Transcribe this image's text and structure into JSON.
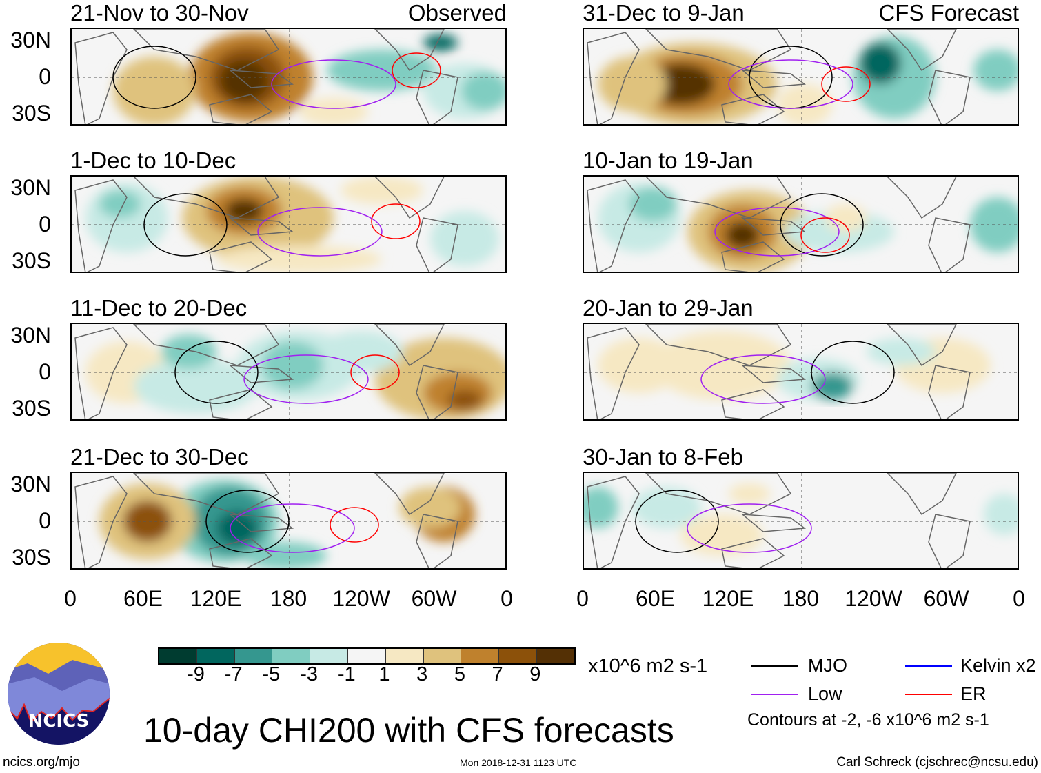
{
  "panels": [
    {
      "title": "21-Nov to 30-Nov",
      "label": "Observed",
      "side": "left",
      "row": 0
    },
    {
      "title": "1-Dec to 10-Dec",
      "label": "",
      "side": "left",
      "row": 1
    },
    {
      "title": "11-Dec to 20-Dec",
      "label": "",
      "side": "left",
      "row": 2
    },
    {
      "title": "21-Dec to 30-Dec",
      "label": "",
      "side": "left",
      "row": 3
    },
    {
      "title": "31-Dec to 9-Jan",
      "label": "CFS Forecast",
      "side": "right",
      "row": 0
    },
    {
      "title": "10-Jan to 19-Jan",
      "label": "",
      "side": "right",
      "row": 1
    },
    {
      "title": "20-Jan to 29-Jan",
      "label": "",
      "side": "right",
      "row": 2
    },
    {
      "title": "30-Jan to 8-Feb",
      "label": "",
      "side": "right",
      "row": 3
    }
  ],
  "lat_labels": [
    "30N",
    "0",
    "30S"
  ],
  "lon_labels": [
    "0",
    "60E",
    "120E",
    "180",
    "120W",
    "60W",
    "0"
  ],
  "colorbar": {
    "colors": [
      "#003c30",
      "#01665e",
      "#35978f",
      "#80cdc1",
      "#c7eae5",
      "#f5f5f5",
      "#f6e8c3",
      "#dfc27d",
      "#bf812d",
      "#8c510a",
      "#543005"
    ],
    "labels": [
      "-9",
      "-7",
      "-5",
      "-3",
      "-1",
      "1",
      "3",
      "5",
      "7",
      "9"
    ],
    "units": "x10^6 m2 s-1"
  },
  "legend": {
    "items": [
      {
        "label": "MJO",
        "color": "#000000"
      },
      {
        "label": "Kelvin x2",
        "color": "#0000ff"
      },
      {
        "label": "Low",
        "color": "#a020f0"
      },
      {
        "label": "ER",
        "color": "#ff0000"
      }
    ],
    "note": "Contours at -2, -6 x10^6 m2 s-1"
  },
  "title": "10-day CHI200 with CFS forecasts",
  "logo_text": "NCICS",
  "footer": {
    "url": "ncics.org/mjo",
    "timestamp": "Mon 2018-12-31 1123 UTC",
    "author": "Carl Schreck (cjschrec@ncsu.edu)"
  }
}
